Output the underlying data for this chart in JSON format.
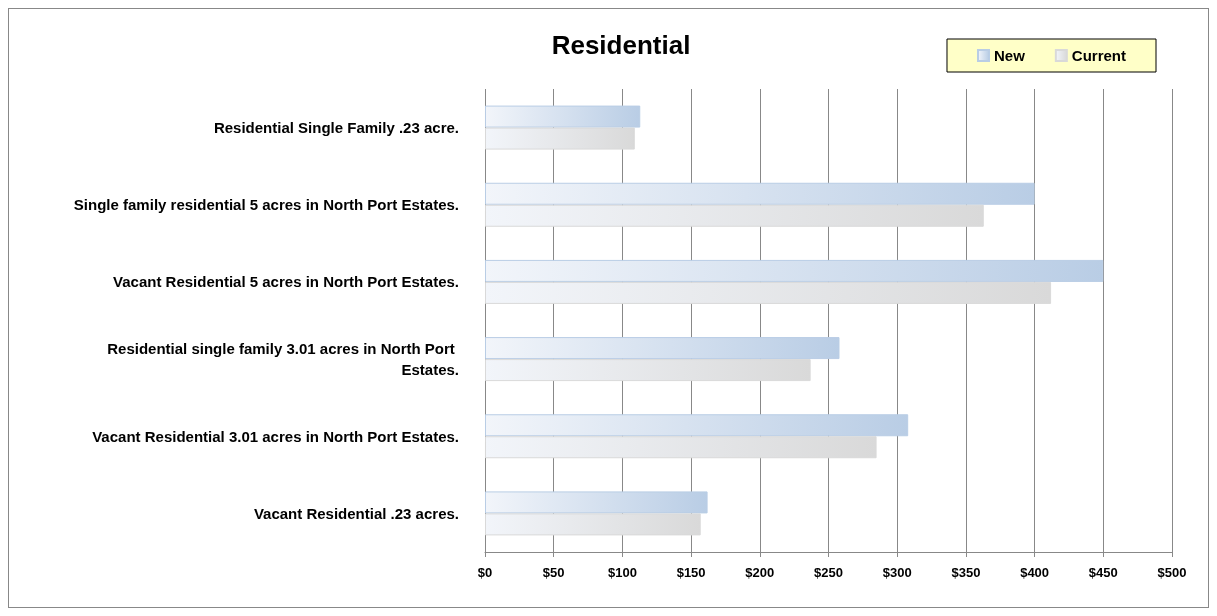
{
  "chart_data": {
    "type": "bar",
    "orientation": "horizontal",
    "title": "Residential",
    "categories": [
      "Residential Single Family .23 acre.",
      "Single family residential 5 acres in North Port Estates.",
      "Vacant Residential 5 acres in North Port Estates.",
      "Residential single family 3.01 acres in North Port Estates.",
      "Vacant Residential 3.01 acres in North Port Estates.",
      "Vacant Residential .23 acres."
    ],
    "series": [
      {
        "name": "New",
        "color": "#b9cde5",
        "values": [
          113,
          400,
          450,
          258,
          308,
          162
        ]
      },
      {
        "name": "Current",
        "color": "#d9d9d9",
        "values": [
          109,
          363,
          412,
          237,
          285,
          157
        ]
      }
    ],
    "xlim": [
      0,
      500
    ],
    "xticks": [
      {
        "value": 0,
        "label": "$0"
      },
      {
        "value": 50,
        "label": "$50"
      },
      {
        "value": 100,
        "label": "$100"
      },
      {
        "value": 150,
        "label": "$150"
      },
      {
        "value": 200,
        "label": "$200"
      },
      {
        "value": 250,
        "label": "$250"
      },
      {
        "value": 300,
        "label": "$300"
      },
      {
        "value": 350,
        "label": "$350"
      },
      {
        "value": 400,
        "label": "$400"
      },
      {
        "value": 450,
        "label": "$450"
      },
      {
        "value": 500,
        "label": "$500"
      }
    ],
    "grid": "x",
    "legend": "top right"
  }
}
